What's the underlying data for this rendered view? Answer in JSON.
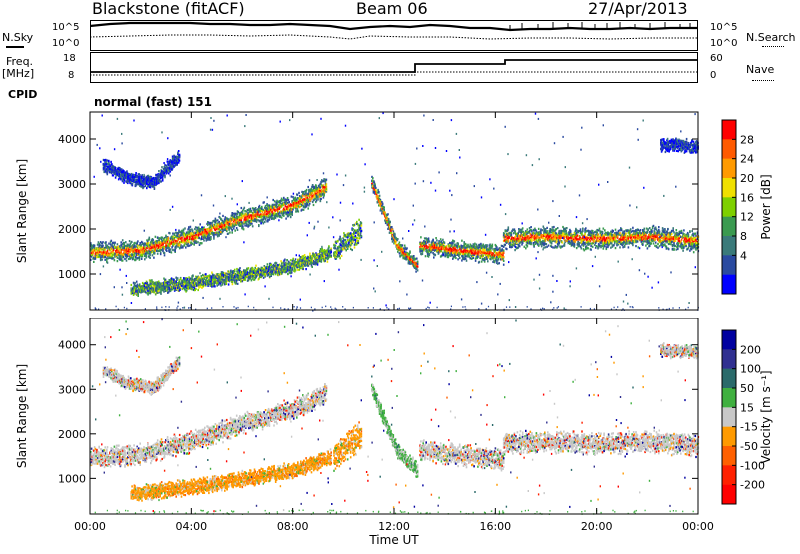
{
  "header": {
    "station": "Blackstone (fitACF)",
    "beam": "Beam 06",
    "date": "27/Apr/2013"
  },
  "top_panels": {
    "nsky_label": "N.Sky",
    "nsky_ticks": [
      "10^5",
      "10^0"
    ],
    "nsearch_label": "N.Search",
    "nsearch_ticks": [
      "10^5",
      "10^0"
    ],
    "freq_label": "Freq.",
    "freq_unit": "[MHz]",
    "freq_ticks": [
      "18",
      "8"
    ],
    "nave_label": "Nave",
    "nave_ticks": [
      "60",
      "0"
    ],
    "cpid_label": "CPID",
    "cpid_value": "normal (fast) 151"
  },
  "chart_data": [
    {
      "type": "heatmap",
      "title": "",
      "xlabel": "Time UT",
      "ylabel": "Slant Range [km]",
      "x_ticks": [
        "00:00",
        "04:00",
        "08:00",
        "12:00",
        "16:00",
        "20:00",
        "00:00"
      ],
      "y_ticks": [
        1000,
        2000,
        3000,
        4000
      ],
      "xlim_hours": [
        0,
        24
      ],
      "ylim_km": [
        200,
        4600
      ],
      "colorbar": {
        "label": "Power [dB]",
        "ticks": [
          28,
          24,
          20,
          16,
          12,
          8,
          4
        ],
        "colors": [
          "#ff0000",
          "#ff5a00",
          "#ff9a00",
          "#f0e000",
          "#7ed000",
          "#3a9a50",
          "#3a7a7a",
          "#2a4aa0",
          "#0000ff"
        ]
      },
      "bands": [
        {
          "t": [
            0,
            2,
            4,
            6,
            8,
            9.3
          ],
          "r": [
            1500,
            1550,
            1850,
            2250,
            2550,
            2950
          ],
          "w": 220,
          "level": "high"
        },
        {
          "t": [
            1.6,
            4,
            6,
            8,
            9.5
          ],
          "r": [
            680,
            820,
            1000,
            1200,
            1500
          ],
          "w": 150,
          "level": "mid"
        },
        {
          "t": [
            0.5,
            1.5,
            2.5,
            3.5
          ],
          "r": [
            3450,
            3150,
            3050,
            3650
          ],
          "w": 140,
          "level": "low"
        },
        {
          "t": [
            9.6,
            10.2,
            10.7
          ],
          "r": [
            1500,
            1800,
            2000
          ],
          "w": 260,
          "level": "mid"
        },
        {
          "t": [
            11.1,
            11.6,
            12.1,
            12.9
          ],
          "r": [
            3050,
            2350,
            1650,
            1200
          ],
          "w": 160,
          "level": "high"
        },
        {
          "t": [
            13.0,
            14.5,
            16.3
          ],
          "r": [
            1650,
            1550,
            1450
          ],
          "w": 200,
          "level": "high"
        },
        {
          "t": [
            16.3,
            18,
            20,
            22,
            24
          ],
          "r": [
            1800,
            1850,
            1800,
            1850,
            1750
          ],
          "w": 220,
          "level": "high"
        },
        {
          "t": [
            22.5,
            24
          ],
          "r": [
            3900,
            3850
          ],
          "w": 140,
          "level": "low"
        }
      ]
    },
    {
      "type": "heatmap",
      "title": "",
      "xlabel": "Time UT",
      "ylabel": "Slant Range [km]",
      "x_ticks": [
        "00:00",
        "04:00",
        "08:00",
        "12:00",
        "16:00",
        "20:00",
        "00:00"
      ],
      "y_ticks": [
        1000,
        2000,
        3000,
        4000
      ],
      "xlim_hours": [
        0,
        24
      ],
      "ylim_km": [
        200,
        4600
      ],
      "colorbar": {
        "label": "Velocity [m s⁻¹]",
        "ticks": [
          200,
          100,
          50,
          15,
          -15,
          -50,
          -100,
          -200
        ],
        "colors": [
          "#0000a0",
          "#303090",
          "#2a6a6a",
          "#40b040",
          "#c8c8c8",
          "#ff9a00",
          "#ff6000",
          "#ff2000",
          "#ff0000"
        ]
      },
      "bands": [
        {
          "t": [
            0,
            2,
            4,
            6,
            8,
            9.3
          ],
          "r": [
            1500,
            1550,
            1850,
            2250,
            2550,
            2950
          ],
          "w": 220,
          "level": "grey"
        },
        {
          "t": [
            1.6,
            4,
            6,
            8,
            9.5
          ],
          "r": [
            680,
            820,
            1000,
            1200,
            1500
          ],
          "w": 170,
          "level": "orange"
        },
        {
          "t": [
            0.5,
            1.5,
            2.5,
            3.5
          ],
          "r": [
            3450,
            3150,
            3050,
            3650
          ],
          "w": 140,
          "level": "grey"
        },
        {
          "t": [
            9.6,
            10.2,
            10.7
          ],
          "r": [
            1500,
            1800,
            2000
          ],
          "w": 300,
          "level": "orange"
        },
        {
          "t": [
            11.1,
            11.6,
            12.1,
            12.9
          ],
          "r": [
            3050,
            2350,
            1650,
            1200
          ],
          "w": 160,
          "level": "green"
        },
        {
          "t": [
            13.0,
            14.5,
            16.3
          ],
          "r": [
            1650,
            1550,
            1450
          ],
          "w": 220,
          "level": "grey"
        },
        {
          "t": [
            16.3,
            18,
            20,
            22,
            24
          ],
          "r": [
            1800,
            1850,
            1800,
            1850,
            1750
          ],
          "w": 230,
          "level": "grey"
        },
        {
          "t": [
            22.5,
            24
          ],
          "r": [
            3900,
            3850
          ],
          "w": 140,
          "level": "grey"
        }
      ]
    }
  ]
}
